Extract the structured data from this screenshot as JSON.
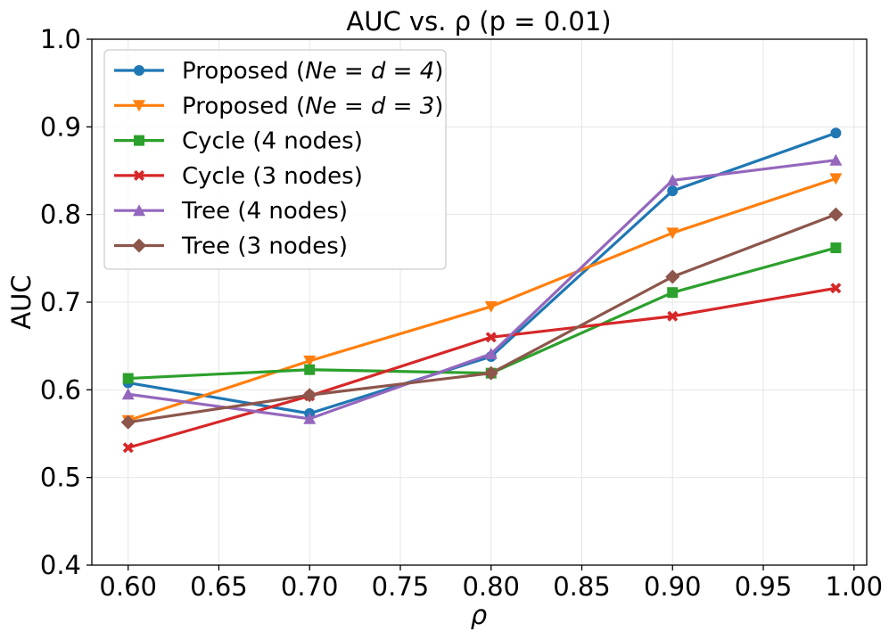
{
  "chart_data": {
    "type": "line",
    "title": "AUC vs. ρ  (p = 0.01)",
    "xlabel": "ρ",
    "ylabel": "AUC",
    "xlim": [
      0.58,
      1.007
    ],
    "ylim": [
      0.4,
      1.0
    ],
    "xticks": [
      0.6,
      0.65,
      0.7,
      0.75,
      0.8,
      0.85,
      0.9,
      0.95,
      1.0
    ],
    "xtick_labels": [
      "0.60",
      "0.65",
      "0.70",
      "0.75",
      "0.80",
      "0.85",
      "0.90",
      "0.95",
      "1.00"
    ],
    "yticks": [
      0.4,
      0.5,
      0.6,
      0.7,
      0.8,
      0.9,
      1.0
    ],
    "ytick_labels": [
      "0.4",
      "0.5",
      "0.6",
      "0.7",
      "0.8",
      "0.9",
      "1.0"
    ],
    "grid": true,
    "legend_position": "top-left",
    "x": [
      0.6,
      0.7,
      0.8,
      0.9,
      0.99
    ],
    "series": [
      {
        "name": "Proposed (Ne = d = 4)",
        "legend_main": "Proposed (",
        "legend_math": "Ne = d = 4",
        "legend_end": ")",
        "color": "#1f77b4",
        "marker": "circle",
        "values": [
          0.608,
          0.573,
          0.638,
          0.827,
          0.893
        ]
      },
      {
        "name": "Proposed (Ne = d = 3)",
        "legend_main": "Proposed (",
        "legend_math": "Ne = d = 3",
        "legend_end": ")",
        "color": "#ff7f0e",
        "marker": "triangle-down",
        "values": [
          0.565,
          0.633,
          0.695,
          0.779,
          0.841
        ]
      },
      {
        "name": "Cycle (4 nodes)",
        "color": "#2ca02c",
        "marker": "square",
        "values": [
          0.613,
          0.623,
          0.619,
          0.711,
          0.762
        ]
      },
      {
        "name": "Cycle (3 nodes)",
        "color": "#d62728",
        "marker": "x-filled",
        "values": [
          0.534,
          0.593,
          0.66,
          0.684,
          0.716
        ]
      },
      {
        "name": "Tree (4 nodes)",
        "color": "#9467bd",
        "marker": "triangle-up",
        "values": [
          0.595,
          0.567,
          0.641,
          0.839,
          0.862
        ]
      },
      {
        "name": "Tree (3 nodes)",
        "color": "#8c564b",
        "marker": "diamond",
        "values": [
          0.563,
          0.594,
          0.619,
          0.729,
          0.8
        ]
      }
    ]
  }
}
